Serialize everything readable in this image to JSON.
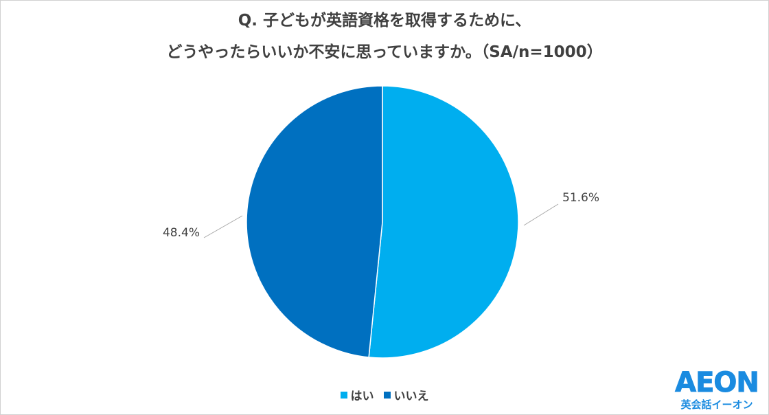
{
  "title": {
    "line1": "Q. 子どもが英語資格を取得するために、",
    "line2": "どうやったらいいか不安に思っていますか。（SA/n=1000）"
  },
  "chart_data": {
    "type": "pie",
    "slices": [
      {
        "label": "はい",
        "value": 51.6,
        "data_label": "51.6%",
        "color": "#00aeef"
      },
      {
        "label": "いいえ",
        "value": 48.4,
        "data_label": "48.4%",
        "color": "#0070c0"
      }
    ],
    "start_angle_deg": 0,
    "direction": "clockwise",
    "legend_position": "bottom"
  },
  "legend": {
    "items": [
      {
        "label": "はい",
        "color": "#00aeef"
      },
      {
        "label": "いいえ",
        "color": "#0070c0"
      }
    ]
  },
  "logo": {
    "mark": "AEON",
    "sub": "英会話イーオン"
  }
}
